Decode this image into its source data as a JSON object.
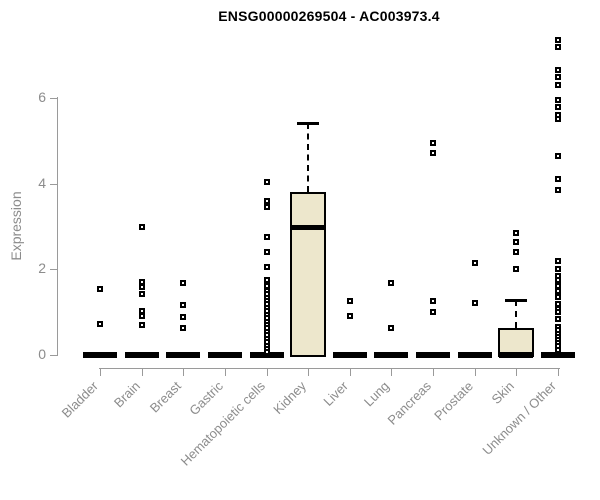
{
  "chart_data": {
    "type": "boxplot",
    "title": "ENSG00000269504 - AC003973.4",
    "xlabel": "",
    "ylabel": "Expression",
    "ylim": [
      0,
      7.5
    ],
    "yticks": [
      0,
      2,
      4,
      6
    ],
    "grid": false,
    "legend": "none",
    "colors": {
      "box_fill": "#EDE7CC",
      "box_border": "#000000",
      "marker": "#000000",
      "axis_line": "#9A9A9A",
      "axis_text": "#8C8C8C",
      "title_text": "#000000"
    },
    "categories": [
      "Bladder",
      "Brain",
      "Breast",
      "Gastric",
      "Hematopoietic cells",
      "Kidney",
      "Liver",
      "Lung",
      "Pancreas",
      "Prostate",
      "Skin",
      "Unknown / Other"
    ],
    "series": [
      {
        "category": "Bladder",
        "zero_bar": true,
        "box": null,
        "outliers": [
          1.55,
          0.72
        ]
      },
      {
        "category": "Brain",
        "zero_bar": true,
        "box": null,
        "outliers": [
          2.98,
          1.7,
          1.58,
          1.42,
          1.02,
          0.9,
          0.7
        ]
      },
      {
        "category": "Breast",
        "zero_bar": true,
        "box": null,
        "outliers": [
          1.67,
          1.16,
          0.88,
          0.63
        ]
      },
      {
        "category": "Gastric",
        "zero_bar": true,
        "box": null,
        "outliers": []
      },
      {
        "category": "Hematopoietic cells",
        "zero_bar": true,
        "box": null,
        "outliers": [
          4.05,
          3.6,
          3.45,
          2.75,
          2.4,
          2.05,
          1.75,
          1.6,
          1.5,
          1.42,
          1.34,
          1.26,
          1.18,
          1.1,
          1.02,
          0.94,
          0.86,
          0.78,
          0.7,
          0.62,
          0.54,
          0.46,
          0.38,
          0.3,
          0.22,
          0.14,
          0.07
        ]
      },
      {
        "category": "Kidney",
        "zero_bar": false,
        "box": {
          "q1": 0,
          "median": 2.98,
          "q3": 3.8,
          "whisker_high": 5.42
        },
        "outliers": []
      },
      {
        "category": "Liver",
        "zero_bar": true,
        "box": null,
        "outliers": [
          1.25,
          0.9
        ]
      },
      {
        "category": "Lung",
        "zero_bar": true,
        "box": null,
        "outliers": [
          1.68,
          0.63
        ]
      },
      {
        "category": "Pancreas",
        "zero_bar": true,
        "box": null,
        "outliers": [
          4.95,
          4.72,
          1.26,
          1.0
        ]
      },
      {
        "category": "Prostate",
        "zero_bar": true,
        "box": null,
        "outliers": [
          2.15,
          1.21
        ]
      },
      {
        "category": "Skin",
        "zero_bar": true,
        "box": {
          "q1": 0,
          "median": 0,
          "q3": 0.63,
          "whisker_high": 1.29
        },
        "outliers": [
          2.85,
          2.65,
          2.4,
          2.0
        ]
      },
      {
        "category": "Unknown / Other",
        "zero_bar": true,
        "box": null,
        "outliers": [
          7.35,
          7.2,
          6.65,
          6.5,
          6.3,
          5.95,
          5.8,
          5.6,
          5.5,
          4.65,
          4.1,
          3.85,
          2.2,
          2.0,
          1.85,
          1.75,
          1.6,
          1.5,
          1.35,
          1.2,
          1.08,
          1.0,
          0.85,
          0.65,
          0.58,
          0.5,
          0.42,
          0.35,
          0.28,
          0.2,
          0.12
        ]
      }
    ]
  }
}
